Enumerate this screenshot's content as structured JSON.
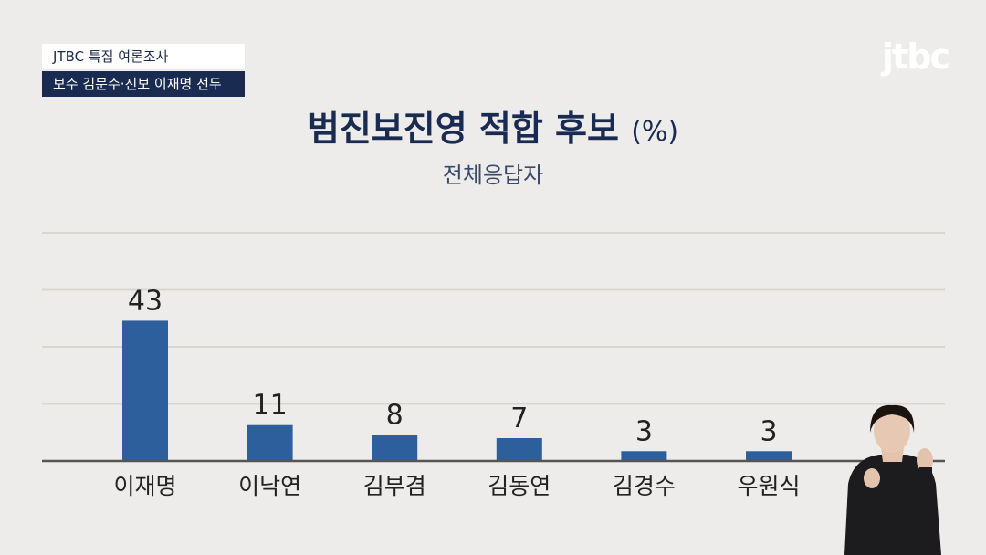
{
  "overlay": {
    "tag_top": "JTBC 특집 여론조사",
    "tag_bottom": "보수 김문수·진보 이재명 선두",
    "logo": "jtbc"
  },
  "colors": {
    "bar": "#2c5f9b",
    "navy": "#1a2b52",
    "background": "#eeecea"
  },
  "chart_data": {
    "type": "bar",
    "title": "범진보진영 적합 후보",
    "title_unit": "(%)",
    "subtitle": "전체응답자",
    "categories": [
      "이재명",
      "이낙연",
      "김부겸",
      "김동연",
      "김경수",
      "우원식"
    ],
    "values": [
      43,
      11,
      8,
      7,
      3,
      3
    ],
    "ylim": [
      0,
      70
    ],
    "grid": true
  }
}
